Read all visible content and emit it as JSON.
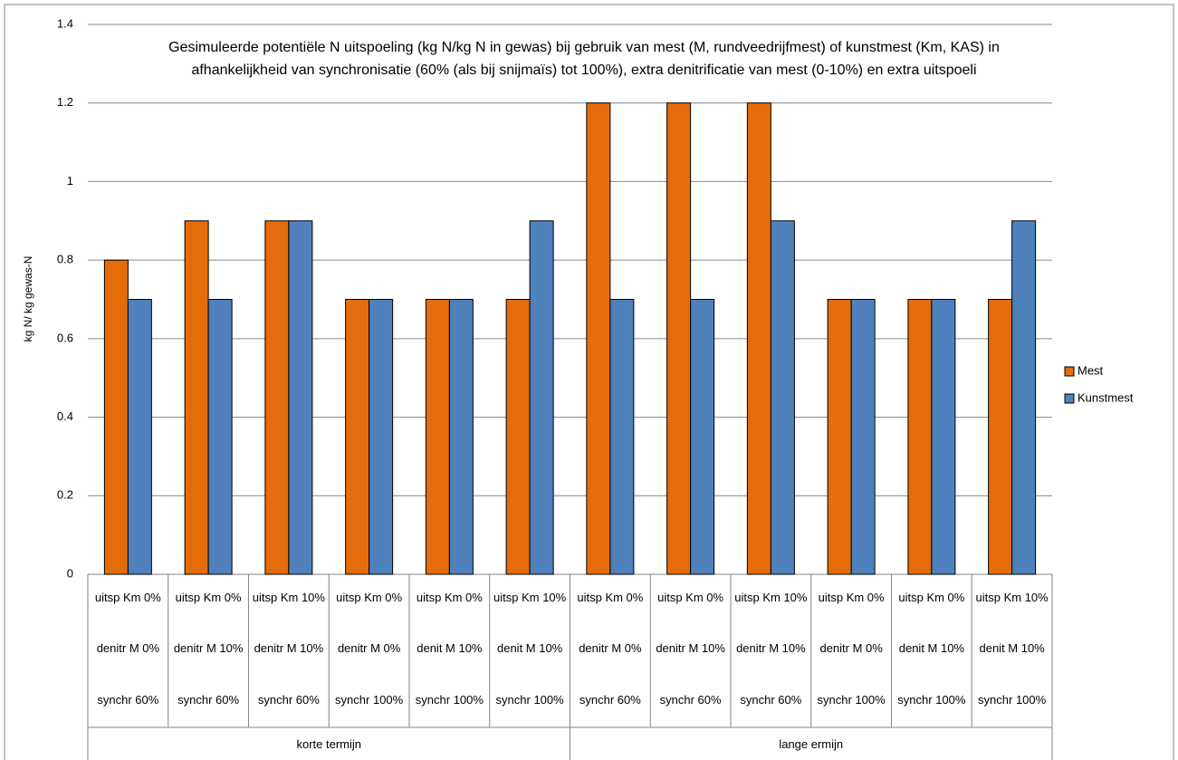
{
  "chart_data": {
    "type": "bar",
    "title": "Gesimuleerde potentiële N uitspoeling (kg N/kg N in gewas) bij gebruik van mest (M, rundveedrijfmest) of kunstmest (Km, KAS)  in afhankelijkheid van synchronisatie (60% (als bij snijmaïs) tot 100%), extra denitrificatie van mest (0-10%) en extra uitspoeli",
    "y_label": "kg N/ kg gewas-N",
    "categories": [
      [
        "uitsp Km 0%",
        "denitr M 0%",
        "synchr  60%"
      ],
      [
        "uitsp Km 0%",
        "denitr M 10%",
        "synchr  60%"
      ],
      [
        "uitsp Km 10%",
        "denitr M 10%",
        "synchr  60%"
      ],
      [
        "uitsp Km 0%",
        "denitr M 0%",
        "synchr 100%"
      ],
      [
        "uitsp Km 0%",
        "denit M 10%",
        "synchr 100%"
      ],
      [
        "uitsp Km 10%",
        "denit M 10%",
        "synchr 100%"
      ],
      [
        "uitsp Km 0%",
        "denitr M 0%",
        "synchr  60%"
      ],
      [
        "uitsp Km 0%",
        "denitr M 10%",
        "synchr  60%"
      ],
      [
        "uitsp Km 10%",
        "denitr M 10%",
        "synchr  60%"
      ],
      [
        "uitsp Km 0%",
        "denitr M 0%",
        "synchr 100%"
      ],
      [
        "uitsp Km 0%",
        "denit M 10%",
        "synchr 100%"
      ],
      [
        "uitsp Km 10%",
        "denit M 10%",
        "synchr 100%"
      ]
    ],
    "category_groups": [
      "korte termijn",
      "lange ermijn"
    ],
    "series": [
      {
        "name": "Mest",
        "color": "#e46c0a",
        "values": [
          0.8,
          0.9,
          0.9,
          0.7,
          0.7,
          0.7,
          1.2,
          1.2,
          1.2,
          0.7,
          0.7,
          0.7
        ]
      },
      {
        "name": "Kunstmest",
        "color": "#4f81bd",
        "values": [
          0.7,
          0.7,
          0.9,
          0.7,
          0.7,
          0.9,
          0.7,
          0.7,
          0.9,
          0.7,
          0.7,
          0.9
        ]
      }
    ],
    "ylim": [
      0,
      1.4
    ],
    "yticks": [
      0,
      0.2,
      0.4,
      0.6,
      0.8,
      1,
      1.2,
      1.4
    ],
    "grid": true,
    "legend": "right"
  }
}
